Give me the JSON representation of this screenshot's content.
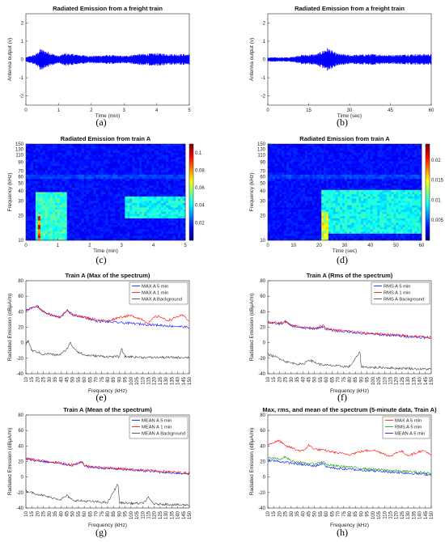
{
  "chart_data": [
    {
      "id": "a",
      "type": "line",
      "caption": "(a)",
      "title": "Radiated Emission from a freight train",
      "xlabel": "Time (min)",
      "ylabel": "Antenna output (v)",
      "xlim": [
        0,
        5
      ],
      "ylim": [
        -2.5,
        2.5
      ],
      "xticks": [
        0,
        1,
        2,
        3,
        4,
        5
      ],
      "yticks": [
        -2,
        -1,
        0,
        1,
        2
      ],
      "series": [
        {
          "color": "#0000ff",
          "x": [
            0,
            0.3,
            0.45,
            1.0,
            1.2,
            2.0,
            2.5,
            3.0,
            3.4,
            4.0,
            4.5,
            5.0
          ],
          "envelope": [
            0.12,
            0.3,
            0.6,
            0.2,
            0.35,
            0.2,
            0.25,
            0.2,
            0.3,
            0.35,
            0.3,
            0.3
          ]
        }
      ]
    },
    {
      "id": "b",
      "type": "line",
      "caption": "(b)",
      "title": "Radiated Emission from a freight train",
      "xlabel": "Time (sec)",
      "ylabel": "Antenna output (v)",
      "xlim": [
        0,
        60
      ],
      "ylim": [
        -2.5,
        2.5
      ],
      "xticks": [
        0,
        15,
        30,
        45,
        60
      ],
      "yticks": [
        -2,
        -1,
        0,
        1,
        2
      ],
      "series": [
        {
          "color": "#0000ff",
          "x": [
            0,
            8,
            12,
            18,
            22,
            25,
            30,
            38,
            45,
            52,
            60
          ],
          "envelope": [
            0.12,
            0.12,
            0.25,
            0.3,
            0.65,
            0.35,
            0.25,
            0.3,
            0.25,
            0.3,
            0.3
          ]
        }
      ]
    },
    {
      "id": "c",
      "type": "heatmap",
      "caption": "(c)",
      "title": "Radiated Emission from train A",
      "xlabel": "Time (min)",
      "ylabel": "Frequency (kHz)",
      "xlim": [
        0,
        5
      ],
      "ylim": [
        10,
        150
      ],
      "xticks": [
        0,
        1,
        2,
        3,
        4,
        5
      ],
      "yticks": [
        10,
        20,
        30,
        40,
        50,
        60,
        70,
        90,
        110,
        130,
        150
      ],
      "colorbar_ticks": [
        0.02,
        0.04,
        0.06,
        0.08,
        0.1
      ],
      "colorbar_range": [
        0,
        0.11
      ],
      "hotspots": [
        {
          "t": [
            0.3,
            1.25
          ],
          "f": [
            10,
            38
          ],
          "level": 0.5
        },
        {
          "t": [
            3.1,
            5.0
          ],
          "f": [
            18,
            34
          ],
          "level": 0.45
        },
        {
          "t": [
            0.35,
            0.45
          ],
          "f": [
            10,
            20
          ],
          "level": 0.95
        }
      ]
    },
    {
      "id": "d",
      "type": "heatmap",
      "caption": "(d)",
      "title": "Radiated Emission from train A",
      "xlabel": "Time (sec)",
      "ylabel": "Frequency (kHz)",
      "xlim": [
        0,
        60
      ],
      "ylim": [
        10,
        150
      ],
      "xticks": [
        0,
        10,
        20,
        30,
        40,
        50,
        60
      ],
      "yticks": [
        10,
        20,
        30,
        40,
        50,
        60,
        70,
        90,
        110,
        130,
        150
      ],
      "colorbar_ticks": [
        0.005,
        0.01,
        0.015,
        0.02
      ],
      "colorbar_range": [
        0,
        0.024
      ],
      "hotspots": [
        {
          "t": [
            21,
            60
          ],
          "f": [
            12,
            40
          ],
          "level": 0.45
        },
        {
          "t": [
            21,
            24
          ],
          "f": [
            10,
            22
          ],
          "level": 0.7
        }
      ]
    },
    {
      "id": "e",
      "type": "line",
      "caption": "(e)",
      "title": "Train A (Max of the spectrum)",
      "xlabel": "Frequency (kHz)",
      "ylabel": "Radiated Emission (dBμA/m)",
      "xlim": [
        10,
        150
      ],
      "ylim": [
        -40,
        80
      ],
      "xticks": [
        10,
        15,
        20,
        25,
        30,
        35,
        40,
        45,
        50,
        55,
        60,
        65,
        70,
        75,
        80,
        85,
        90,
        95,
        100,
        105,
        110,
        115,
        120,
        125,
        130,
        135,
        140,
        145,
        150
      ],
      "yticks": [
        -40,
        -20,
        0,
        20,
        40,
        60,
        80
      ],
      "legend": "top-right",
      "series": [
        {
          "name": "MAX A 5 min",
          "color": "#0000ff",
          "x": [
            10,
            20,
            25,
            30,
            35,
            40,
            45,
            50,
            60,
            70,
            80,
            90,
            100,
            110,
            120,
            130,
            140,
            150
          ],
          "y": [
            42,
            47,
            40,
            37,
            34,
            33,
            42,
            36,
            33,
            28,
            27,
            26,
            25,
            24,
            23,
            22,
            21,
            20
          ]
        },
        {
          "name": "MAX A 1 min",
          "color": "#ff0000",
          "x": [
            10,
            20,
            25,
            30,
            35,
            40,
            45,
            50,
            60,
            70,
            80,
            90,
            100,
            110,
            115,
            120,
            125,
            130,
            135,
            140,
            145,
            150
          ],
          "y": [
            42,
            47,
            40,
            37,
            34,
            33,
            42,
            36,
            33,
            30,
            28,
            33,
            35,
            30,
            25,
            33,
            34,
            29,
            30,
            34,
            35,
            28
          ]
        },
        {
          "name": "MAX A Background",
          "color": "#333333",
          "x": [
            10,
            12,
            15,
            20,
            25,
            30,
            35,
            40,
            45,
            48,
            50,
            55,
            60,
            70,
            80,
            90,
            92,
            95,
            100,
            110,
            120,
            130,
            140,
            150
          ],
          "y": [
            -2,
            3,
            -10,
            -12,
            -15,
            -14,
            -16,
            -15,
            -8,
            0,
            -5,
            -12,
            -16,
            -17,
            -18,
            -18,
            -8,
            -18,
            -18,
            -19,
            -19,
            -19,
            -19,
            -19
          ]
        }
      ]
    },
    {
      "id": "f",
      "type": "line",
      "caption": "(f)",
      "title": "Train A (Rms of the spectrum)",
      "xlabel": "Frequency (kHz)",
      "ylabel": "Radiated Emission (dBμA/m)",
      "xlim": [
        10,
        150
      ],
      "ylim": [
        -40,
        80
      ],
      "xticks": [
        10,
        15,
        20,
        25,
        30,
        35,
        40,
        45,
        50,
        55,
        60,
        65,
        70,
        75,
        80,
        85,
        90,
        95,
        100,
        105,
        110,
        115,
        120,
        125,
        130,
        135,
        140,
        145,
        150
      ],
      "yticks": [
        -40,
        -20,
        0,
        20,
        40,
        60,
        80
      ],
      "legend": "top-right",
      "series": [
        {
          "name": "RMS A 5 min",
          "color": "#0000ff",
          "x": [
            10,
            20,
            25,
            30,
            40,
            50,
            58,
            60,
            70,
            80,
            90,
            100,
            110,
            120,
            130,
            140,
            150
          ],
          "y": [
            26,
            24,
            27,
            22,
            19,
            18,
            21,
            17,
            15,
            14,
            12,
            11,
            10,
            9,
            8,
            7,
            6
          ]
        },
        {
          "name": "RMS A 1 min",
          "color": "#ff0000",
          "x": [
            10,
            20,
            25,
            30,
            40,
            50,
            58,
            60,
            70,
            80,
            90,
            100,
            110,
            120,
            130,
            140,
            150
          ],
          "y": [
            27,
            25,
            28,
            23,
            20,
            19,
            22,
            18,
            16,
            15,
            13,
            12,
            11,
            10,
            9,
            8,
            7
          ]
        },
        {
          "name": "RMS A Background",
          "color": "#333333",
          "x": [
            10,
            20,
            25,
            30,
            40,
            45,
            50,
            55,
            60,
            70,
            80,
            89,
            90,
            100,
            110,
            120,
            130,
            140,
            150
          ],
          "y": [
            -15,
            -20,
            -24,
            -26,
            -28,
            -22,
            -25,
            -28,
            -29,
            -30,
            -31,
            -12,
            -31,
            -32,
            -32,
            -33,
            -33,
            -34,
            -34
          ]
        }
      ]
    },
    {
      "id": "g",
      "type": "line",
      "caption": "(g)",
      "title": "Train A (Mean of the spectrum)",
      "xlabel": "Frequency (kHz)",
      "ylabel": "Radiated Emission (dBμA/m)",
      "xlim": [
        10,
        150
      ],
      "ylim": [
        -40,
        80
      ],
      "xticks": [
        10,
        15,
        20,
        25,
        30,
        35,
        40,
        45,
        50,
        55,
        60,
        65,
        70,
        75,
        80,
        85,
        90,
        95,
        100,
        105,
        110,
        115,
        120,
        125,
        130,
        135,
        140,
        145,
        150
      ],
      "yticks": [
        -40,
        -20,
        0,
        20,
        40,
        60,
        80
      ],
      "legend": "top-right",
      "series": [
        {
          "name": "MEAN A 5 min",
          "color": "#0000ff",
          "x": [
            10,
            20,
            30,
            40,
            50,
            58,
            60,
            70,
            80,
            90,
            100,
            110,
            120,
            130,
            140,
            150
          ],
          "y": [
            23,
            21,
            19,
            17,
            15,
            19,
            14,
            12,
            11,
            10,
            9,
            8,
            7,
            6,
            5,
            4
          ]
        },
        {
          "name": "MEAN A 1 min",
          "color": "#ff0000",
          "x": [
            10,
            20,
            30,
            40,
            50,
            58,
            60,
            70,
            80,
            90,
            100,
            110,
            120,
            130,
            140,
            150
          ],
          "y": [
            24,
            22,
            20,
            18,
            16,
            20,
            15,
            13,
            12,
            11,
            10,
            9,
            8,
            7,
            6,
            5
          ]
        },
        {
          "name": "MEAN A Background",
          "color": "#333333",
          "x": [
            10,
            20,
            30,
            40,
            45,
            50,
            60,
            70,
            80,
            89,
            90,
            100,
            110,
            115,
            120,
            130,
            140,
            150
          ],
          "y": [
            -18,
            -22,
            -26,
            -29,
            -24,
            -30,
            -31,
            -32,
            -33,
            -8,
            -33,
            -34,
            -34,
            -27,
            -35,
            -35,
            -36,
            -36
          ]
        }
      ]
    },
    {
      "id": "h",
      "type": "line",
      "caption": "(h)",
      "title": "Max, rms, and mean of the spectrum (5-minute data, Train A)",
      "xlabel": "Frequency (kHz)",
      "ylabel": "Radiated Emission (dBμA/m)",
      "xlim": [
        10,
        150
      ],
      "ylim": [
        -40,
        80
      ],
      "xticks": [
        10,
        15,
        20,
        25,
        30,
        35,
        40,
        45,
        50,
        55,
        60,
        65,
        70,
        75,
        80,
        85,
        90,
        95,
        100,
        105,
        110,
        115,
        120,
        125,
        130,
        135,
        140,
        145,
        150
      ],
      "yticks": [
        -40,
        -20,
        0,
        20,
        40,
        60,
        80
      ],
      "legend": "top-right",
      "series": [
        {
          "name": "MAX A 5 min",
          "color": "#ff0000",
          "x": [
            10,
            20,
            25,
            30,
            35,
            40,
            45,
            50,
            60,
            70,
            80,
            90,
            100,
            110,
            115,
            120,
            125,
            130,
            135,
            140,
            145,
            150
          ],
          "y": [
            42,
            47,
            40,
            38,
            35,
            33,
            41,
            36,
            34,
            31,
            29,
            33,
            35,
            30,
            26,
            32,
            33,
            28,
            30,
            33,
            34,
            27
          ]
        },
        {
          "name": "RMS A 5 min",
          "color": "#00a000",
          "x": [
            10,
            20,
            25,
            30,
            40,
            50,
            58,
            60,
            70,
            80,
            90,
            100,
            110,
            120,
            130,
            140,
            150
          ],
          "y": [
            25,
            23,
            26,
            21,
            18,
            17,
            20,
            16,
            14,
            13,
            11,
            10,
            9,
            8,
            7,
            6,
            5
          ]
        },
        {
          "name": "MEAN A 5 min",
          "color": "#0000ff",
          "x": [
            10,
            20,
            30,
            40,
            50,
            58,
            60,
            70,
            80,
            90,
            100,
            110,
            120,
            130,
            140,
            150
          ],
          "y": [
            22,
            20,
            18,
            16,
            14,
            18,
            13,
            11,
            10,
            9,
            8,
            7,
            6,
            5,
            4,
            3
          ]
        }
      ]
    }
  ]
}
